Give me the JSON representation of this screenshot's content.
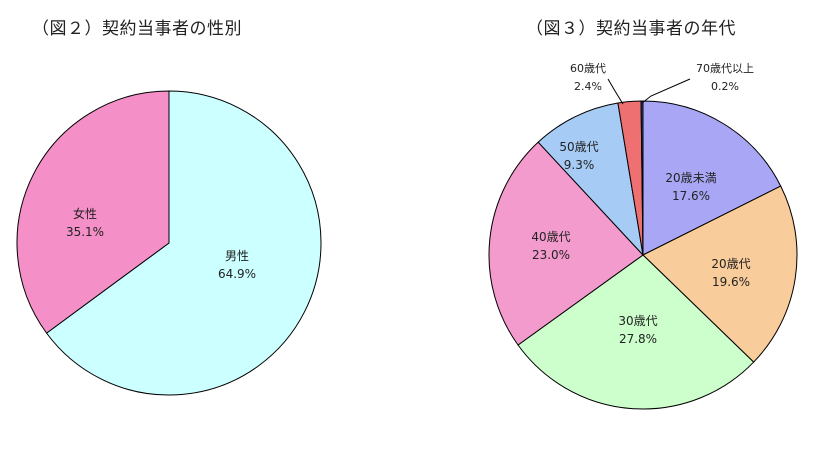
{
  "chart_data": [
    {
      "type": "pie",
      "title": "（図２）契約当事者の性別",
      "series": [
        {
          "name": "男性",
          "value": 64.9,
          "label": "64.9%",
          "color": "#ccffff"
        },
        {
          "name": "女性",
          "value": 35.1,
          "label": "35.1%",
          "color": "#f48fc7"
        }
      ]
    },
    {
      "type": "pie",
      "title": "（図３）契約当事者の年代",
      "series": [
        {
          "name": "20歳未満",
          "value": 17.6,
          "label": "17.6%",
          "color": "#a9a7f5"
        },
        {
          "name": "20歳代",
          "value": 19.6,
          "label": "19.6%",
          "color": "#f9cc9b"
        },
        {
          "name": "30歳代",
          "value": 27.8,
          "label": "27.8%",
          "color": "#ccffcc"
        },
        {
          "name": "40歳代",
          "value": 23.0,
          "label": "23.0%",
          "color": "#f49bce"
        },
        {
          "name": "50歳代",
          "value": 9.3,
          "label": "9.3%",
          "color": "#a6cbf5"
        },
        {
          "name": "60歳代",
          "value": 2.4,
          "label": "2.4%",
          "color": "#ee7070"
        },
        {
          "name": "70歳代以上",
          "value": 0.2,
          "label": "0.2%",
          "color": "#2a4a99"
        }
      ]
    }
  ]
}
